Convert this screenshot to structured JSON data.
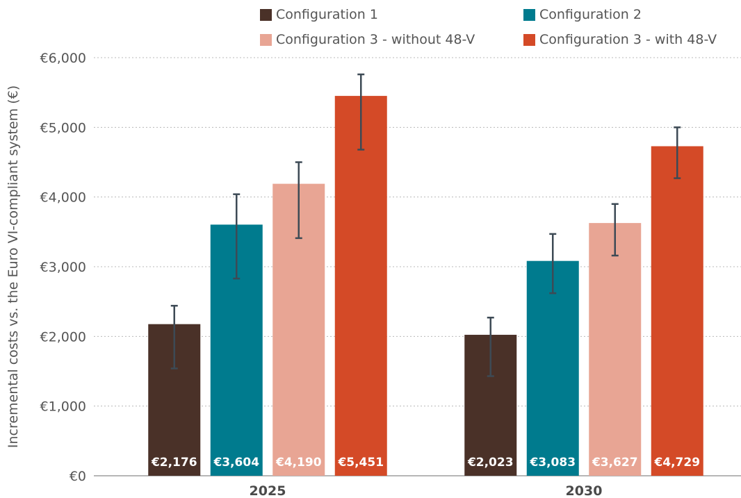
{
  "chart_data": {
    "type": "bar",
    "categories": [
      "2025",
      "2030"
    ],
    "ylabel": "Incremental costs vs. the Euro VI-compliant system (€)",
    "ylim": [
      0,
      6000
    ],
    "yticks": [
      0,
      1000,
      2000,
      3000,
      4000,
      5000,
      6000
    ],
    "ytick_labels": [
      "€0",
      "€1,000",
      "€2,000",
      "€3,000",
      "€4,000",
      "€5,000",
      "€6,000"
    ],
    "grid": true,
    "legend_position": "top",
    "series": [
      {
        "name": "Configuration 1",
        "color": "#4a3128",
        "values": [
          2176,
          2023
        ],
        "labels": [
          "€2,176",
          "€2,023"
        ],
        "error_low": [
          1540,
          1430
        ],
        "error_high": [
          2440,
          2270
        ]
      },
      {
        "name": "Configuration 2",
        "color": "#007b8e",
        "values": [
          3604,
          3083
        ],
        "labels": [
          "€3,604",
          "€3,083"
        ],
        "error_low": [
          2830,
          2620
        ],
        "error_high": [
          4040,
          3470
        ]
      },
      {
        "name": "Configuration 3 - without 48-V",
        "color": "#e8a594",
        "values": [
          4190,
          3627
        ],
        "labels": [
          "€4,190",
          "€3,627"
        ],
        "error_low": [
          3410,
          3160
        ],
        "error_high": [
          4500,
          3900
        ]
      },
      {
        "name": "Configuration 3 - with 48-V",
        "color": "#d44a27",
        "values": [
          5451,
          4729
        ],
        "labels": [
          "€5,451",
          "€4,729"
        ],
        "error_low": [
          4680,
          4270
        ],
        "error_high": [
          5760,
          5000
        ]
      }
    ]
  }
}
